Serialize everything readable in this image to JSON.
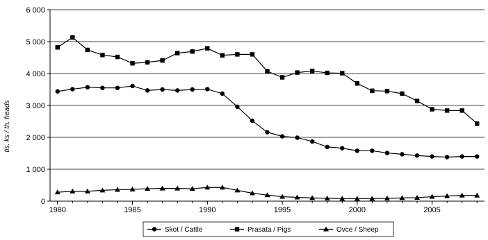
{
  "chart_data": {
    "type": "line",
    "title": "",
    "xlabel": "",
    "ylabel": "tis. ks / th. heads",
    "x": [
      1980,
      1981,
      1982,
      1983,
      1984,
      1985,
      1986,
      1987,
      1988,
      1989,
      1990,
      1991,
      1992,
      1993,
      1994,
      1995,
      1996,
      1997,
      1998,
      1999,
      2000,
      2001,
      2002,
      2003,
      2004,
      2005,
      2006,
      2007,
      2008
    ],
    "xticks": [
      1980,
      1985,
      1990,
      1995,
      2000,
      2005
    ],
    "xtick_labels": [
      "1980",
      "1985",
      "1990",
      "1995",
      "2000",
      "2005"
    ],
    "xlim": [
      1979.5,
      2008.5
    ],
    "ylim": [
      0,
      6000
    ],
    "yticks": [
      0,
      1000,
      2000,
      3000,
      4000,
      5000,
      6000
    ],
    "ytick_labels": [
      "0",
      "1 000",
      "2 000",
      "3 000",
      "4 000",
      "5 000",
      "6 000"
    ],
    "grid": "horizontal",
    "legend_position": "bottom",
    "series": [
      {
        "name": "Skot / Cattle",
        "marker": "circle",
        "values": [
          3440,
          3510,
          3570,
          3550,
          3550,
          3610,
          3470,
          3500,
          3470,
          3500,
          3510,
          3370,
          2960,
          2520,
          2160,
          2030,
          1990,
          1870,
          1700,
          1660,
          1580,
          1580,
          1510,
          1470,
          1430,
          1400,
          1380,
          1400,
          1400
        ]
      },
      {
        "name": "Prasata / Pigs",
        "marker": "square",
        "values": [
          4820,
          5130,
          4740,
          4580,
          4520,
          4320,
          4350,
          4410,
          4640,
          4690,
          4790,
          4570,
          4600,
          4600,
          4070,
          3880,
          4030,
          4080,
          4020,
          4010,
          3690,
          3460,
          3450,
          3370,
          3140,
          2880,
          2840,
          2840,
          2430
        ]
      },
      {
        "name": "Ovce / Sheep",
        "marker": "triangle",
        "values": [
          280,
          310,
          310,
          340,
          360,
          370,
          390,
          400,
          400,
          390,
          430,
          430,
          340,
          250,
          190,
          140,
          120,
          100,
          90,
          80,
          80,
          80,
          90,
          100,
          110,
          140,
          160,
          180,
          180
        ]
      }
    ],
    "colors": {
      "line": "#000000",
      "grid": "#000000",
      "frame": "#000000"
    }
  }
}
